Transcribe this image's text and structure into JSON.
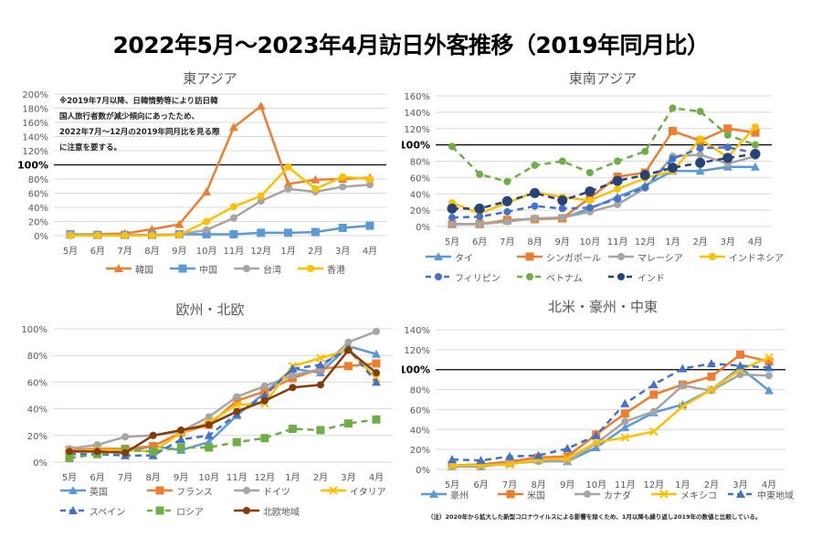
{
  "title": "2022年5月～2023年4月訪日外客推移（2019年同月比）",
  "footnote": "（注）2020年から拡大した新型コロナウイルスによる影響を除くため、1月以降も繰り返し2019年の数値と比較している。",
  "chart_data": [
    {
      "type": "line",
      "title": "東アジア",
      "note": "※2019年7月以降、日韓情勢等により訪日韓\n国人旅行者数が減少傾向にあったため、\n2022年7月～12月の2019年同月比を見る際\nに注意を要する。",
      "categories": [
        "5月",
        "6月",
        "7月",
        "8月",
        "9月",
        "10月",
        "11月",
        "12月",
        "1月",
        "2月",
        "3月",
        "4月"
      ],
      "ylim": [
        0,
        200
      ],
      "yticks": [
        "0%",
        "20%",
        "40%",
        "60%",
        "80%",
        "100%",
        "120%",
        "140%",
        "160%",
        "180%",
        "200%"
      ],
      "reference_line": 100,
      "grid": true,
      "legend": "bottom",
      "series": [
        {
          "name": "韓国",
          "color": "#ED7D31",
          "marker": "triangle",
          "dashed": false,
          "values": [
            2,
            2,
            3,
            9,
            16,
            62,
            153,
            183,
            73,
            79,
            80,
            82
          ]
        },
        {
          "name": "中国",
          "color": "#5B9BD5",
          "marker": "square",
          "dashed": false,
          "values": [
            2,
            1,
            1,
            1,
            2,
            2,
            2,
            4,
            4,
            5,
            11,
            14
          ]
        },
        {
          "name": "台湾",
          "color": "#A5A5A5",
          "marker": "circle",
          "dashed": false,
          "values": [
            2,
            1,
            1,
            1,
            2,
            8,
            25,
            49,
            66,
            62,
            69,
            72
          ]
        },
        {
          "name": "香港",
          "color": "#FFC000",
          "marker": "circle",
          "dashed": false,
          "values": [
            0,
            0,
            0,
            0,
            1,
            20,
            41,
            56,
            97,
            66,
            83,
            80
          ]
        }
      ]
    },
    {
      "type": "line",
      "title": "東南アジア",
      "categories": [
        "5月",
        "6月",
        "7月",
        "8月",
        "9月",
        "10月",
        "11月",
        "12月",
        "1月",
        "2月",
        "3月",
        "4月"
      ],
      "ylim": [
        0,
        160
      ],
      "yticks": [
        "0%",
        "20%",
        "40%",
        "60%",
        "80%",
        "100%",
        "120%",
        "140%",
        "160%"
      ],
      "reference_line": 100,
      "grid": true,
      "legend": "bottom",
      "series": [
        {
          "name": "タイ",
          "color": "#5B9BD5",
          "marker": "triangle",
          "dashed": false,
          "values": [
            3,
            3,
            7,
            10,
            10,
            22,
            36,
            50,
            68,
            68,
            73,
            73
          ]
        },
        {
          "name": "シンガポール",
          "color": "#ED7D31",
          "marker": "square",
          "dashed": false,
          "values": [
            3,
            3,
            8,
            9,
            10,
            35,
            61,
            66,
            117,
            105,
            120,
            115
          ]
        },
        {
          "name": "マレーシア",
          "color": "#A5A5A5",
          "marker": "circle",
          "dashed": false,
          "values": [
            3,
            3,
            6,
            10,
            11,
            18,
            27,
            47,
            86,
            88,
            77,
            86
          ]
        },
        {
          "name": "インドネシア",
          "color": "#FFC000",
          "marker": "circle",
          "dashed": false,
          "values": [
            29,
            16,
            29,
            42,
            36,
            32,
            46,
            59,
            68,
            107,
            85,
            122
          ]
        },
        {
          "name": "フィリピン",
          "color": "#4472C4",
          "marker": "circle",
          "dashed": true,
          "values": [
            11,
            12,
            18,
            25,
            22,
            23,
            34,
            48,
            83,
            96,
            97,
            90
          ]
        },
        {
          "name": "ベトナム",
          "color": "#70AD47",
          "marker": "circle",
          "dashed": true,
          "values": [
            98,
            64,
            55,
            75,
            80,
            66,
            80,
            92,
            145,
            141,
            112,
            100
          ]
        },
        {
          "name": "インド",
          "color": "#264478",
          "marker": "bigcircle",
          "dashed": true,
          "values": [
            22,
            22,
            31,
            41,
            32,
            43,
            56,
            63,
            72,
            78,
            84,
            89
          ]
        }
      ]
    },
    {
      "type": "line",
      "title": "欧州・北欧",
      "categories": [
        "5月",
        "6月",
        "7月",
        "8月",
        "9月",
        "10月",
        "11月",
        "12月",
        "1月",
        "2月",
        "3月",
        "4月"
      ],
      "ylim": [
        0,
        100
      ],
      "yticks": [
        "0%",
        "20%",
        "40%",
        "60%",
        "80%",
        "100%"
      ],
      "grid": true,
      "legend": "bottom",
      "series": [
        {
          "name": "英国",
          "color": "#5B9BD5",
          "marker": "triangle",
          "dashed": false,
          "values": [
            9,
            10,
            8,
            12,
            9,
            15,
            35,
            52,
            70,
            67,
            87,
            81
          ]
        },
        {
          "name": "フランス",
          "color": "#ED7D31",
          "marker": "square",
          "dashed": false,
          "values": [
            9,
            10,
            10,
            12,
            22,
            28,
            46,
            53,
            63,
            70,
            72,
            74
          ]
        },
        {
          "name": "ドイツ",
          "color": "#A5A5A5",
          "marker": "circle",
          "dashed": false,
          "values": [
            10,
            13,
            19,
            20,
            23,
            34,
            49,
            57,
            65,
            70,
            90,
            98
          ]
        },
        {
          "name": "イタリア",
          "color": "#FFC000",
          "marker": "x",
          "dashed": false,
          "values": [
            8,
            9,
            9,
            8,
            22,
            30,
            43,
            44,
            72,
            78,
            84,
            63
          ]
        },
        {
          "name": "スペイン",
          "color": "#4472C4",
          "marker": "triangle",
          "dashed": true,
          "values": [
            6,
            6,
            5,
            5,
            17,
            20,
            36,
            50,
            70,
            73,
            85,
            60
          ]
        },
        {
          "name": "ロシア",
          "color": "#70AD47",
          "marker": "square",
          "dashed": true,
          "values": [
            3,
            6,
            9,
            8,
            11,
            11,
            15,
            18,
            25,
            24,
            29,
            32
          ]
        },
        {
          "name": "北欧地域",
          "color": "#843C0C",
          "marker": "circle",
          "dashed": false,
          "values": [
            8,
            8,
            7,
            20,
            24,
            28,
            38,
            46,
            56,
            58,
            84,
            67
          ]
        }
      ]
    },
    {
      "type": "line",
      "title": "北米・豪州・中東",
      "categories": [
        "5月",
        "6月",
        "7月",
        "8月",
        "9月",
        "10月",
        "11月",
        "12月",
        "1月",
        "2月",
        "3月",
        "4月"
      ],
      "ylim": [
        0,
        140
      ],
      "yticks": [
        "0%",
        "20%",
        "40%",
        "60%",
        "80%",
        "100%",
        "120%",
        "140%"
      ],
      "reference_line": 100,
      "grid": true,
      "legend": "bottom",
      "series": [
        {
          "name": "豪州",
          "color": "#5B9BD5",
          "marker": "triangle",
          "dashed": false,
          "values": [
            3,
            3,
            6,
            9,
            8,
            22,
            42,
            57,
            65,
            80,
            102,
            79
          ]
        },
        {
          "name": "米国",
          "color": "#ED7D31",
          "marker": "square",
          "dashed": false,
          "values": [
            4,
            5,
            8,
            12,
            13,
            35,
            56,
            75,
            85,
            93,
            115,
            108
          ]
        },
        {
          "name": "カナダ",
          "color": "#A5A5A5",
          "marker": "circle",
          "dashed": false,
          "values": [
            3,
            4,
            6,
            8,
            8,
            26,
            48,
            58,
            84,
            79,
            95,
            94
          ]
        },
        {
          "name": "メキシコ",
          "color": "#FFC000",
          "marker": "x",
          "dashed": false,
          "values": [
            4,
            4,
            5,
            10,
            11,
            27,
            32,
            38,
            63,
            80,
            100,
            112
          ]
        },
        {
          "name": "中東地域",
          "color": "#4472C4",
          "marker": "triangle",
          "dashed": true,
          "values": [
            10,
            9,
            13,
            14,
            21,
            34,
            66,
            85,
            101,
            106,
            104,
            102
          ]
        }
      ]
    }
  ]
}
